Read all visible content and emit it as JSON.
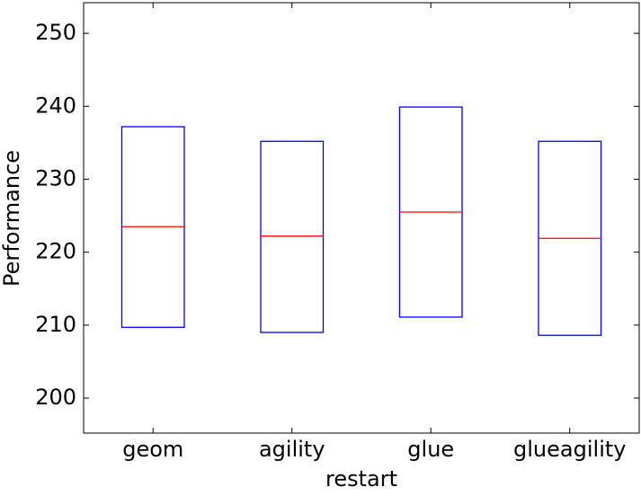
{
  "chart_data": {
    "type": "box",
    "x_label": "restart",
    "y_label": "Performance",
    "categories": [
      "geom",
      "agility",
      "glue",
      "glueagility"
    ],
    "q1": [
      209.7,
      209.0,
      211.1,
      208.6
    ],
    "median": [
      223.5,
      222.2,
      225.5,
      221.9
    ],
    "q3": [
      237.2,
      235.2,
      239.9,
      235.2
    ],
    "box_color": "#0000ff",
    "median_color": "#ff0000",
    "ylim": [
      195.2,
      254.2
    ],
    "yticks": [
      200,
      210,
      220,
      230,
      240,
      250
    ],
    "grid": false
  }
}
